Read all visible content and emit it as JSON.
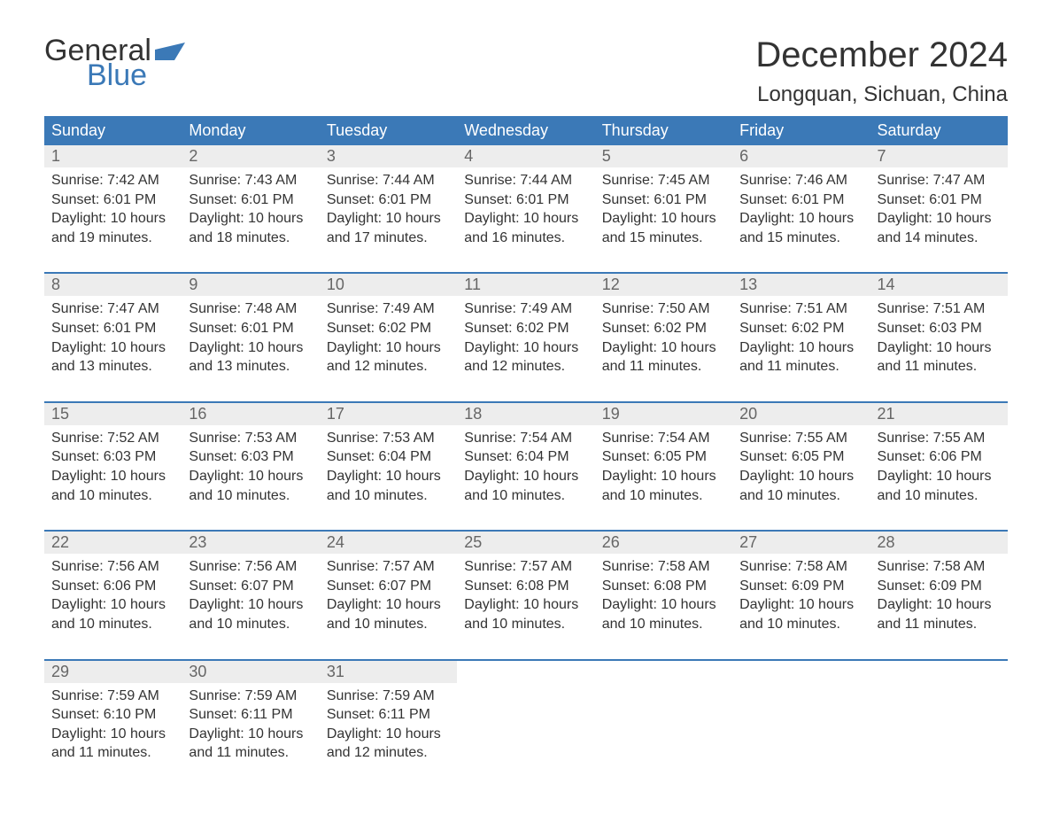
{
  "logo": {
    "part1": "General",
    "part2": "Blue"
  },
  "title": "December 2024",
  "location": "Longquan, Sichuan, China",
  "colors": {
    "header_bg": "#3b79b7",
    "header_text": "#ffffff",
    "daynum_bg": "#ededed",
    "daynum_text": "#666666",
    "body_text": "#333333",
    "accent": "#3b79b7",
    "page_bg": "#ffffff"
  },
  "fonts": {
    "title_size_pt": 30,
    "location_size_pt": 18,
    "dow_size_pt": 14,
    "daynum_size_pt": 14,
    "detail_size_pt": 12,
    "family": "Arial"
  },
  "days_of_week": [
    "Sunday",
    "Monday",
    "Tuesday",
    "Wednesday",
    "Thursday",
    "Friday",
    "Saturday"
  ],
  "weeks": [
    [
      {
        "n": "1",
        "sunrise": "Sunrise: 7:42 AM",
        "sunset": "Sunset: 6:01 PM",
        "d1": "Daylight: 10 hours",
        "d2": "and 19 minutes."
      },
      {
        "n": "2",
        "sunrise": "Sunrise: 7:43 AM",
        "sunset": "Sunset: 6:01 PM",
        "d1": "Daylight: 10 hours",
        "d2": "and 18 minutes."
      },
      {
        "n": "3",
        "sunrise": "Sunrise: 7:44 AM",
        "sunset": "Sunset: 6:01 PM",
        "d1": "Daylight: 10 hours",
        "d2": "and 17 minutes."
      },
      {
        "n": "4",
        "sunrise": "Sunrise: 7:44 AM",
        "sunset": "Sunset: 6:01 PM",
        "d1": "Daylight: 10 hours",
        "d2": "and 16 minutes."
      },
      {
        "n": "5",
        "sunrise": "Sunrise: 7:45 AM",
        "sunset": "Sunset: 6:01 PM",
        "d1": "Daylight: 10 hours",
        "d2": "and 15 minutes."
      },
      {
        "n": "6",
        "sunrise": "Sunrise: 7:46 AM",
        "sunset": "Sunset: 6:01 PM",
        "d1": "Daylight: 10 hours",
        "d2": "and 15 minutes."
      },
      {
        "n": "7",
        "sunrise": "Sunrise: 7:47 AM",
        "sunset": "Sunset: 6:01 PM",
        "d1": "Daylight: 10 hours",
        "d2": "and 14 minutes."
      }
    ],
    [
      {
        "n": "8",
        "sunrise": "Sunrise: 7:47 AM",
        "sunset": "Sunset: 6:01 PM",
        "d1": "Daylight: 10 hours",
        "d2": "and 13 minutes."
      },
      {
        "n": "9",
        "sunrise": "Sunrise: 7:48 AM",
        "sunset": "Sunset: 6:01 PM",
        "d1": "Daylight: 10 hours",
        "d2": "and 13 minutes."
      },
      {
        "n": "10",
        "sunrise": "Sunrise: 7:49 AM",
        "sunset": "Sunset: 6:02 PM",
        "d1": "Daylight: 10 hours",
        "d2": "and 12 minutes."
      },
      {
        "n": "11",
        "sunrise": "Sunrise: 7:49 AM",
        "sunset": "Sunset: 6:02 PM",
        "d1": "Daylight: 10 hours",
        "d2": "and 12 minutes."
      },
      {
        "n": "12",
        "sunrise": "Sunrise: 7:50 AM",
        "sunset": "Sunset: 6:02 PM",
        "d1": "Daylight: 10 hours",
        "d2": "and 11 minutes."
      },
      {
        "n": "13",
        "sunrise": "Sunrise: 7:51 AM",
        "sunset": "Sunset: 6:02 PM",
        "d1": "Daylight: 10 hours",
        "d2": "and 11 minutes."
      },
      {
        "n": "14",
        "sunrise": "Sunrise: 7:51 AM",
        "sunset": "Sunset: 6:03 PM",
        "d1": "Daylight: 10 hours",
        "d2": "and 11 minutes."
      }
    ],
    [
      {
        "n": "15",
        "sunrise": "Sunrise: 7:52 AM",
        "sunset": "Sunset: 6:03 PM",
        "d1": "Daylight: 10 hours",
        "d2": "and 10 minutes."
      },
      {
        "n": "16",
        "sunrise": "Sunrise: 7:53 AM",
        "sunset": "Sunset: 6:03 PM",
        "d1": "Daylight: 10 hours",
        "d2": "and 10 minutes."
      },
      {
        "n": "17",
        "sunrise": "Sunrise: 7:53 AM",
        "sunset": "Sunset: 6:04 PM",
        "d1": "Daylight: 10 hours",
        "d2": "and 10 minutes."
      },
      {
        "n": "18",
        "sunrise": "Sunrise: 7:54 AM",
        "sunset": "Sunset: 6:04 PM",
        "d1": "Daylight: 10 hours",
        "d2": "and 10 minutes."
      },
      {
        "n": "19",
        "sunrise": "Sunrise: 7:54 AM",
        "sunset": "Sunset: 6:05 PM",
        "d1": "Daylight: 10 hours",
        "d2": "and 10 minutes."
      },
      {
        "n": "20",
        "sunrise": "Sunrise: 7:55 AM",
        "sunset": "Sunset: 6:05 PM",
        "d1": "Daylight: 10 hours",
        "d2": "and 10 minutes."
      },
      {
        "n": "21",
        "sunrise": "Sunrise: 7:55 AM",
        "sunset": "Sunset: 6:06 PM",
        "d1": "Daylight: 10 hours",
        "d2": "and 10 minutes."
      }
    ],
    [
      {
        "n": "22",
        "sunrise": "Sunrise: 7:56 AM",
        "sunset": "Sunset: 6:06 PM",
        "d1": "Daylight: 10 hours",
        "d2": "and 10 minutes."
      },
      {
        "n": "23",
        "sunrise": "Sunrise: 7:56 AM",
        "sunset": "Sunset: 6:07 PM",
        "d1": "Daylight: 10 hours",
        "d2": "and 10 minutes."
      },
      {
        "n": "24",
        "sunrise": "Sunrise: 7:57 AM",
        "sunset": "Sunset: 6:07 PM",
        "d1": "Daylight: 10 hours",
        "d2": "and 10 minutes."
      },
      {
        "n": "25",
        "sunrise": "Sunrise: 7:57 AM",
        "sunset": "Sunset: 6:08 PM",
        "d1": "Daylight: 10 hours",
        "d2": "and 10 minutes."
      },
      {
        "n": "26",
        "sunrise": "Sunrise: 7:58 AM",
        "sunset": "Sunset: 6:08 PM",
        "d1": "Daylight: 10 hours",
        "d2": "and 10 minutes."
      },
      {
        "n": "27",
        "sunrise": "Sunrise: 7:58 AM",
        "sunset": "Sunset: 6:09 PM",
        "d1": "Daylight: 10 hours",
        "d2": "and 10 minutes."
      },
      {
        "n": "28",
        "sunrise": "Sunrise: 7:58 AM",
        "sunset": "Sunset: 6:09 PM",
        "d1": "Daylight: 10 hours",
        "d2": "and 11 minutes."
      }
    ],
    [
      {
        "n": "29",
        "sunrise": "Sunrise: 7:59 AM",
        "sunset": "Sunset: 6:10 PM",
        "d1": "Daylight: 10 hours",
        "d2": "and 11 minutes."
      },
      {
        "n": "30",
        "sunrise": "Sunrise: 7:59 AM",
        "sunset": "Sunset: 6:11 PM",
        "d1": "Daylight: 10 hours",
        "d2": "and 11 minutes."
      },
      {
        "n": "31",
        "sunrise": "Sunrise: 7:59 AM",
        "sunset": "Sunset: 6:11 PM",
        "d1": "Daylight: 10 hours",
        "d2": "and 12 minutes."
      },
      null,
      null,
      null,
      null
    ]
  ]
}
